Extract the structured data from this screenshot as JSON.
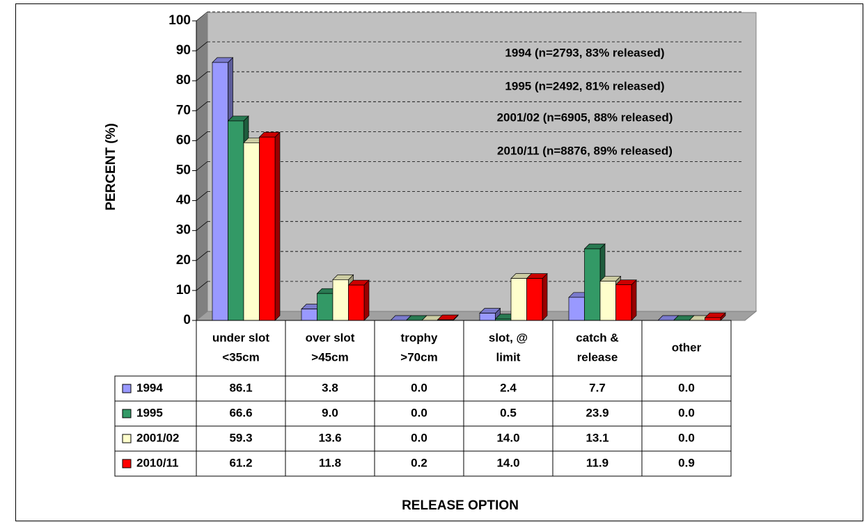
{
  "chart_data": {
    "type": "bar3d",
    "y_label": "PERCENT (%)",
    "x_label": "RELEASE OPTION",
    "annotations": [
      "1994 (n=2793, 83% released)",
      "1995 (n=2492, 81% released)",
      "2001/02 (n=6905, 88% released)",
      "2010/11 (n=8876, 89% released)"
    ],
    "categories": [
      [
        "under slot",
        "<35cm"
      ],
      [
        "over slot",
        ">45cm"
      ],
      [
        "trophy",
        ">70cm"
      ],
      [
        "slot,  @",
        "limit"
      ],
      [
        "catch &",
        "release"
      ],
      [
        "other"
      ]
    ],
    "series": [
      {
        "name": "1994",
        "color": "#9999ff",
        "values": [
          86.1,
          3.8,
          0,
          2.4,
          7.7,
          0
        ],
        "value_labels": [
          "86.1",
          "3.8",
          "0.0",
          "2.4",
          "7.7",
          "0.0"
        ]
      },
      {
        "name": "1995",
        "color": "#339966",
        "values": [
          66.6,
          9,
          0,
          0.5,
          23.9,
          0
        ],
        "value_labels": [
          "66.6",
          "9.0",
          "0.0",
          "0.5",
          "23.9",
          "0.0"
        ]
      },
      {
        "name": "2001/02",
        "color": "#ffffcc",
        "values": [
          59.3,
          13.6,
          0,
          14,
          13.1,
          0
        ],
        "value_labels": [
          "59.3",
          "13.6",
          "0.0",
          "14.0",
          "13.1",
          "0.0"
        ]
      },
      {
        "name": "2010/11",
        "color": "#ff0000",
        "values": [
          61.2,
          11.8,
          0.2,
          14,
          11.9,
          0.9
        ],
        "value_labels": [
          "61.2",
          "11.8",
          "0.2",
          "14.0",
          "11.9",
          "0.9"
        ]
      }
    ],
    "ylim": [
      0,
      100
    ],
    "yticks": [
      0,
      10,
      20,
      30,
      40,
      50,
      60,
      70,
      80,
      90,
      100
    ],
    "grid": true
  }
}
